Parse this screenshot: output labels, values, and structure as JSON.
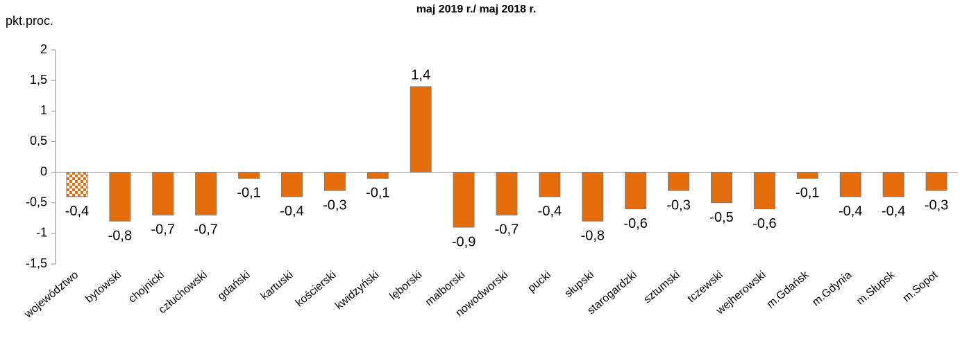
{
  "chart_data": {
    "type": "bar",
    "title": "maj 2019 r./ maj 2018 r.",
    "y_label": "pkt.proc.",
    "categories": [
      "województwo",
      "bytowski",
      "chojnicki",
      "człuchowski",
      "gdański",
      "kartuski",
      "kościerski",
      "kwidzyński",
      "lęborski",
      "malborski",
      "nowodworski",
      "pucki",
      "słupski",
      "starogardzki",
      "sztumski",
      "tczewski",
      "wejherowski",
      "m.Gdańsk",
      "m.Gdynia",
      "m.Słupsk",
      "m.Sopot"
    ],
    "values": [
      -0.4,
      -0.8,
      -0.7,
      -0.7,
      -0.1,
      -0.4,
      -0.3,
      -0.1,
      1.4,
      -0.9,
      -0.7,
      -0.4,
      -0.8,
      -0.6,
      -0.3,
      -0.5,
      -0.6,
      -0.1,
      -0.4,
      -0.4,
      -0.3
    ],
    "value_labels": [
      "-0,4",
      "-0,8",
      "-0,7",
      "-0,7",
      "-0,1",
      "-0,4",
      "-0,3",
      "-0,1",
      "1,4",
      "-0,9",
      "-0,7",
      "-0,4",
      "-0,8",
      "-0,6",
      "-0,3",
      "-0,5",
      "-0,6",
      "-0,1",
      "-0,4",
      "-0,4",
      "-0,3"
    ],
    "color": "#e46c0a",
    "patterned_bars": [
      0
    ],
    "ylim": [
      -1.5,
      2
    ],
    "yticks": [
      2,
      {
        "value": 1.5,
        "label": "1,5"
      },
      1,
      {
        "value": 0.5,
        "label": "0,5"
      },
      0,
      {
        "value": -0.5,
        "label": "-0,5"
      },
      -1,
      {
        "value": -1.5,
        "label": "-1,5"
      }
    ]
  }
}
